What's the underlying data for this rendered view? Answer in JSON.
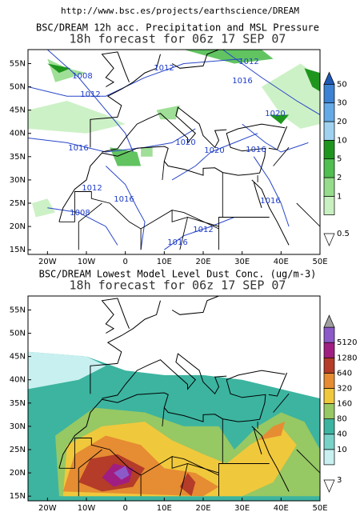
{
  "header": {
    "url": "http://www.bsc.es/projects/earthscience/DREAM"
  },
  "panels": [
    {
      "title": "BSC/DREAM 12h acc. Precipitation and MSL Pressure",
      "subtitle": "18h forecast for 06z 17 SEP 07",
      "lat_labels": [
        "55N",
        "50N",
        "45N",
        "40N",
        "35N",
        "30N",
        "25N",
        "20N",
        "15N"
      ],
      "lon_labels": [
        "20W",
        "10W",
        "0",
        "10E",
        "20E",
        "30E",
        "40E",
        "50E"
      ],
      "colorbar_labels": [
        "0.5",
        "1",
        "2",
        "5",
        "10",
        "20",
        "30",
        "50"
      ],
      "colorbar_colors": [
        "#ffffff",
        "#c8f0c0",
        "#96dc8c",
        "#50be50",
        "#1e961e",
        "#a0d2f0",
        "#64aae6",
        "#3c82d2",
        "#1e5ab4"
      ],
      "contour_labels": [
        "1012",
        "1008",
        "1012",
        "1016",
        "1012",
        "1016",
        "1020",
        "1016",
        "1020",
        "1020",
        "1016",
        "1016",
        "1008",
        "1012",
        "1016",
        "1012"
      ]
    },
    {
      "title": "BSC/DREAM Lowest Model Level Dust Conc. (ug/m-3)",
      "subtitle": "18h forecast for 06z 17 SEP 07",
      "lat_labels": [
        "55N",
        "50N",
        "45N",
        "40N",
        "35N",
        "30N",
        "25N",
        "20N",
        "15N"
      ],
      "lon_labels": [
        "20W",
        "10W",
        "0",
        "10E",
        "20E",
        "30E",
        "40E",
        "50E"
      ],
      "colorbar_labels": [
        "3",
        "10",
        "40",
        "80",
        "160",
        "320",
        "640",
        "1280",
        "5120"
      ],
      "colorbar_colors": [
        "#ffffff",
        "#c8f0f0",
        "#78d2c8",
        "#3cb4a0",
        "#96c864",
        "#f0c83c",
        "#e68c32",
        "#b43c28",
        "#a01e82",
        "#8c5ac8",
        "#a0a0a0"
      ]
    }
  ]
}
